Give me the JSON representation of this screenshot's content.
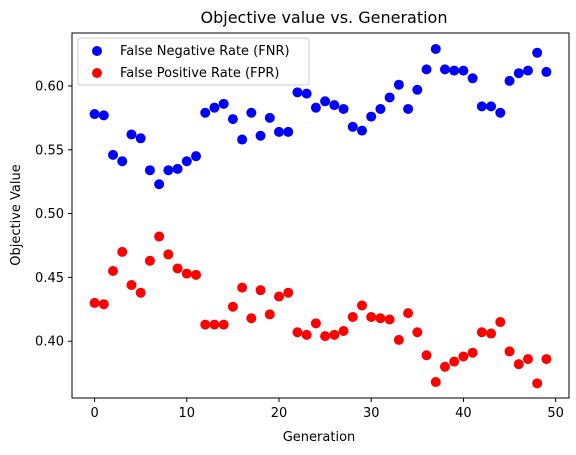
{
  "chart_data": {
    "type": "scatter",
    "title": "Objective value vs. Generation",
    "xlabel": "Generation",
    "ylabel": "Objective Value",
    "xlim": [
      -2.45,
      51.45
    ],
    "ylim": [
      0.3555,
      0.6415
    ],
    "xticks": [
      0,
      10,
      20,
      30,
      40,
      50
    ],
    "yticks": [
      0.4,
      0.45,
      0.5,
      0.55,
      0.6
    ],
    "xtick_labels": [
      "0",
      "10",
      "20",
      "30",
      "40",
      "50"
    ],
    "ytick_labels": [
      "0.40",
      "0.45",
      "0.50",
      "0.55",
      "0.60"
    ],
    "grid": false,
    "legend_position": "top-left",
    "x": [
      0,
      1,
      2,
      3,
      4,
      5,
      6,
      7,
      8,
      9,
      10,
      11,
      12,
      13,
      14,
      15,
      16,
      17,
      18,
      19,
      20,
      21,
      22,
      23,
      24,
      25,
      26,
      27,
      28,
      29,
      30,
      31,
      32,
      33,
      34,
      35,
      36,
      37,
      38,
      39,
      40,
      41,
      42,
      43,
      44,
      45,
      46,
      47,
      48,
      49
    ],
    "series": [
      {
        "name": "False Negative Rate (FNR)",
        "color": "#0000ff",
        "values": [
          0.578,
          0.577,
          0.546,
          0.541,
          0.562,
          0.559,
          0.534,
          0.523,
          0.534,
          0.535,
          0.541,
          0.545,
          0.579,
          0.583,
          0.586,
          0.574,
          0.558,
          0.579,
          0.561,
          0.575,
          0.564,
          0.564,
          0.595,
          0.594,
          0.583,
          0.588,
          0.585,
          0.582,
          0.568,
          0.565,
          0.576,
          0.582,
          0.591,
          0.601,
          0.582,
          0.597,
          0.613,
          0.629,
          0.613,
          0.612,
          0.612,
          0.606,
          0.584,
          0.584,
          0.579,
          0.604,
          0.61,
          0.612,
          0.626,
          0.611
        ]
      },
      {
        "name": "False Positive Rate (FPR)",
        "color": "#ff0000",
        "values": [
          0.43,
          0.429,
          0.455,
          0.47,
          0.444,
          0.438,
          0.463,
          0.482,
          0.468,
          0.457,
          0.453,
          0.452,
          0.413,
          0.413,
          0.413,
          0.427,
          0.442,
          0.418,
          0.44,
          0.421,
          0.435,
          0.438,
          0.407,
          0.405,
          0.414,
          0.404,
          0.405,
          0.408,
          0.419,
          0.428,
          0.419,
          0.418,
          0.417,
          0.401,
          0.422,
          0.407,
          0.389,
          0.368,
          0.38,
          0.384,
          0.388,
          0.391,
          0.407,
          0.406,
          0.415,
          0.392,
          0.382,
          0.386,
          0.367,
          0.386
        ]
      }
    ]
  }
}
